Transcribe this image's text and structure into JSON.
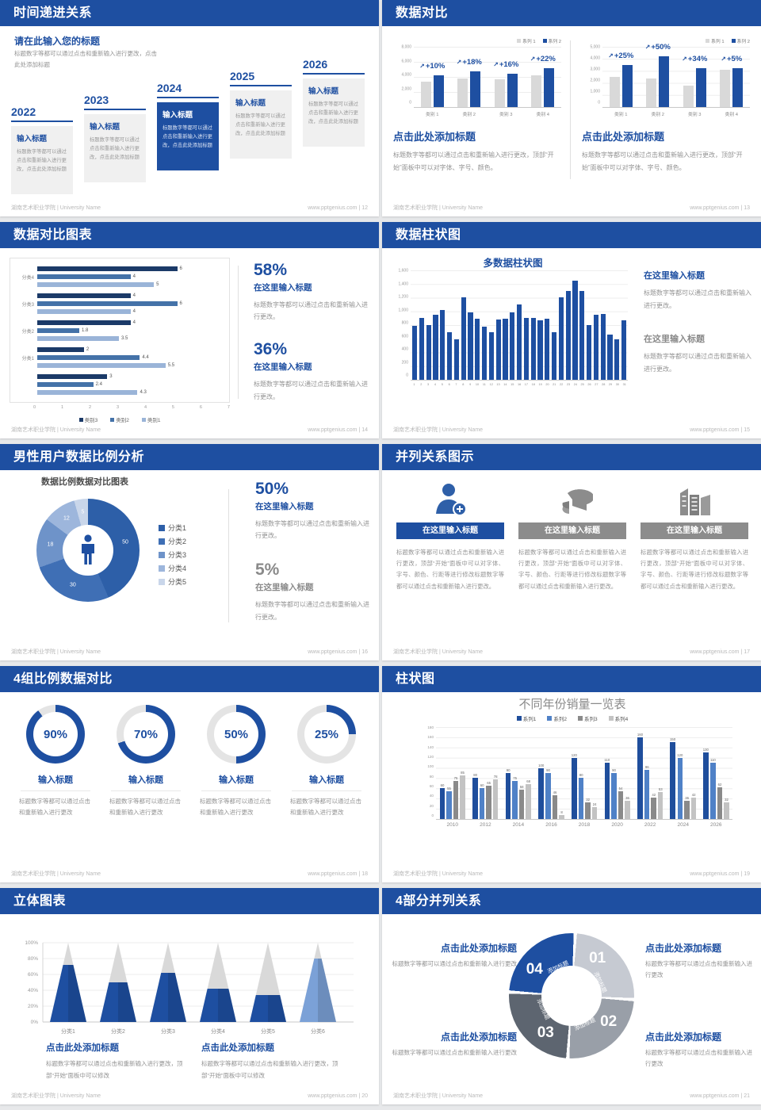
{
  "theme": {
    "accent": "#1e4fa1",
    "accent_mid": "#4f81c7",
    "bar_gray": "#d9d9d9",
    "text_gray": "#939393"
  },
  "footer": {
    "org": "湖南艺术职业学院 | University Name",
    "site": "www.pptgenius.com"
  },
  "slide12": {
    "title": "时间递进关系",
    "page": "12",
    "heading": "请在此输入您的标题",
    "subtext": "标题数字等都可以通过点击和重新输入进行更改，点击此处添加标题",
    "items": [
      {
        "year": "2022",
        "card_title": "输入标题",
        "card_body": "标题数字等都可以通过点击和重新输入进行更改，点击此处添加标题",
        "highlight": false
      },
      {
        "year": "2023",
        "card_title": "输入标题",
        "card_body": "标题数字等都可以通过点击和重新输入进行更改，点击此处添加标题",
        "highlight": false
      },
      {
        "year": "2024",
        "card_title": "输入标题",
        "card_body": "标题数字等都可以通过点击和重新输入进行更改，点击此处添加标题",
        "highlight": true
      },
      {
        "year": "2025",
        "card_title": "输入标题",
        "card_body": "标题数字等都可以通过点击和重新输入进行更改，点击此处添加标题",
        "highlight": false
      },
      {
        "year": "2026",
        "card_title": "输入标题",
        "card_body": "标题数字等都可以通过点击和重新输入进行更改，点击此处添加标题",
        "highlight": false
      }
    ]
  },
  "slide13": {
    "title": "数据对比",
    "page": "13",
    "legend": [
      "系列 1",
      "系列 2"
    ],
    "heading": "点击此处添加标题",
    "body": "标题数字等都可以通过点击和重新输入进行更改，顶部“开始”面板中可以对字体、字号、颜色。",
    "charts": [
      {
        "type": "bar",
        "ymax": 8000,
        "yticks": [
          "8,000",
          "6,000",
          "4,000",
          "2,000",
          "0"
        ],
        "categories": [
          "类别 1",
          "类别 2",
          "类别 3",
          "类别 4"
        ],
        "series": [
          {
            "name": "系列1",
            "values": [
              3400,
              3800,
              3700,
              4200
            ]
          },
          {
            "name": "系列2",
            "values": [
              4200,
              4700,
              4400,
              5200
            ]
          }
        ],
        "percents": [
          "+10%",
          "+18%",
          "+16%",
          "+22%"
        ]
      },
      {
        "type": "bar",
        "ymax": 5000,
        "yticks": [
          "5,000",
          "4,000",
          "3,000",
          "2,000",
          "1,000",
          "0"
        ],
        "categories": [
          "类别 1",
          "类别 2",
          "类别 3",
          "类别 4"
        ],
        "series": [
          {
            "name": "系列1",
            "values": [
              2500,
              2400,
              1800,
              3100
            ]
          },
          {
            "name": "系列2",
            "values": [
              3500,
              4200,
              3200,
              3250
            ]
          }
        ],
        "percents": [
          "+25%",
          "+50%",
          "+34%",
          "+5%"
        ]
      }
    ]
  },
  "slide14": {
    "title": "数据对比图表",
    "page": "14",
    "chart": {
      "type": "bar-horizontal",
      "xmax": 7,
      "xticks": [
        "0",
        "1",
        "2",
        "3",
        "4",
        "5",
        "6",
        "7"
      ],
      "colors": [
        "#1b3a68",
        "#4472a8",
        "#9ab4d8"
      ],
      "legend": [
        "类别3",
        "类别2",
        "类别1"
      ],
      "groups": [
        {
          "label": "分类4",
          "values": [
            6,
            4,
            5
          ]
        },
        {
          "label": "分类3",
          "values": [
            4,
            6,
            4
          ]
        },
        {
          "label": "分类2",
          "values": [
            4,
            1.8,
            3.5
          ]
        },
        {
          "label": "分类1",
          "values": [
            2,
            4.4,
            5.5
          ]
        },
        {
          "label": "",
          "values": [
            3,
            2.4,
            4.3
          ]
        }
      ]
    },
    "stats": [
      {
        "pct": "58%",
        "heading": "在这里输入标题",
        "body": "标题数字等都可以通过点击和重新输入进行更改。",
        "blue": true
      },
      {
        "pct": "36%",
        "heading": "在这里输入标题",
        "body": "标题数字等都可以通过点击和重新输入进行更改。",
        "blue": true
      }
    ]
  },
  "slide15": {
    "title": "数据柱状图",
    "page": "15",
    "chart_title": "多数据柱状图",
    "chart": {
      "type": "bar",
      "ymax": 1600,
      "yticks": [
        "1,600",
        "1,400",
        "1,200",
        "1,000",
        "800",
        "600",
        "400",
        "200",
        "0"
      ],
      "xlabels": [
        "1",
        "2",
        "3",
        "4",
        "5",
        "6",
        "7",
        "8",
        "9",
        "10",
        "11",
        "12",
        "13",
        "14",
        "15",
        "16",
        "17",
        "18",
        "19",
        "20",
        "21",
        "22",
        "23",
        "24",
        "25",
        "26",
        "27",
        "28",
        "29",
        "30",
        "31"
      ],
      "values": [
        790,
        900,
        800,
        950,
        1020,
        700,
        590,
        1210,
        980,
        890,
        780,
        700,
        880,
        890,
        990,
        1100,
        900,
        900,
        870,
        895,
        700,
        1210,
        1300,
        1450,
        1300,
        800,
        955,
        965,
        660,
        590,
        865
      ]
    },
    "sections": [
      {
        "heading": "在这里输入标题",
        "body": "标题数字等都可以通过点击和重新输入进行更改。",
        "blue": true
      },
      {
        "heading": "在这里输入标题",
        "body": "标题数字等都可以通过点击和重新输入进行更改。",
        "blue": false
      }
    ]
  },
  "slide16": {
    "title": "男性用户数据比例分析",
    "page": "16",
    "chart_title": "数据比例数据对比图表",
    "donut": {
      "type": "pie",
      "values": [
        50,
        30,
        18,
        12,
        5
      ],
      "labels": [
        "50",
        "30",
        "18",
        "12",
        "5"
      ],
      "colors": [
        "#2d5fa8",
        "#3f6fb5",
        "#6e93c9",
        "#9db6dc",
        "#c9d6ea"
      ],
      "legend": [
        "分类1",
        "分类2",
        "分类3",
        "分类4",
        "分类5"
      ]
    },
    "stats": [
      {
        "pct": "50%",
        "heading": "在这里输入标题",
        "body": "标题数字等都可以通过点击和重新输入进行更改。",
        "blue": true
      },
      {
        "pct": "5%",
        "heading": "在这里输入标题",
        "body": "标题数字等都可以通过点击和重新输入进行更改。",
        "blue": false
      }
    ]
  },
  "slide17": {
    "title": "并列关系图示",
    "page": "17",
    "columns": [
      {
        "icon": "person-add-icon",
        "header": "在这里输入标题",
        "accent": true,
        "body": "标题数字等都可以通过点击和重新输入进行更改，顶部“开始”面板中可以对字体、字号、颜色、行距等进行修改标题数字等都可以通过点击和重新输入进行更改。"
      },
      {
        "icon": "pie-3d-icon",
        "header": "在这里输入标题",
        "accent": false,
        "body": "标题数字等都可以通过点击和重新输入进行更改，顶部“开始”面板中可以对字体、字号、颜色、行距等进行修改标题数字等都可以通过点击和重新输入进行更改。"
      },
      {
        "icon": "buildings-icon",
        "header": "在这里输入标题",
        "accent": false,
        "body": "标题数字等都可以通过点击和重新输入进行更改，顶部“开始”面板中可以对字体、字号、颜色、行距等进行修改标题数字等都可以通过点击和重新输入进行更改。"
      }
    ]
  },
  "slide18": {
    "title": "4组比例数据对比",
    "page": "18",
    "item_heading": "输入标题",
    "item_body": "标题数字等都可以通过点击和重新输入进行更改",
    "gauges": [
      {
        "value": 90,
        "label": "90%"
      },
      {
        "value": 70,
        "label": "70%"
      },
      {
        "value": 50,
        "label": "50%"
      },
      {
        "value": 25,
        "label": "25%"
      }
    ]
  },
  "slide19": {
    "title": "柱状图",
    "page": "19",
    "chart_title": "不同年份销量一览表",
    "chart": {
      "type": "bar",
      "ymax": 180,
      "yticks": [
        "180",
        "160",
        "140",
        "120",
        "100",
        "80",
        "60",
        "40",
        "20",
        "0"
      ],
      "categories": [
        "2010",
        "2012",
        "2014",
        "2016",
        "2018",
        "2020",
        "2022",
        "2024",
        "2026"
      ],
      "colors": [
        "#1f4e9c",
        "#4f81c7",
        "#8a8a8a",
        "#c3c3c3"
      ],
      "series": [
        {
          "name": "系列1",
          "values": [
            60,
            80,
            90,
            100,
            120,
            110,
            160,
            150,
            130
          ]
        },
        {
          "name": "系列2",
          "values": [
            55,
            60,
            75,
            90,
            80,
            90,
            96,
            120,
            110
          ]
        },
        {
          "name": "系列3",
          "values": [
            75,
            65,
            58,
            46,
            32,
            54,
            42,
            36,
            62
          ]
        },
        {
          "name": "系列4",
          "values": [
            85,
            78,
            68,
            8,
            24,
            36,
            53,
            42,
            32
          ]
        }
      ]
    }
  },
  "slide20": {
    "title": "立体图表",
    "page": "20",
    "yticks": [
      "100%",
      "80%",
      "60%",
      "40%",
      "20%",
      "0%"
    ],
    "cones": [
      {
        "label": "分类1",
        "pct": 72,
        "color": "#1e4fa1"
      },
      {
        "label": "分类2",
        "pct": 50,
        "color": "#1e4fa1"
      },
      {
        "label": "分类3",
        "pct": 62,
        "color": "#1e4fa1"
      },
      {
        "label": "分类4",
        "pct": 42,
        "color": "#1e4fa1"
      },
      {
        "label": "分类5",
        "pct": 34,
        "color": "#1e4fa1"
      },
      {
        "label": "分类6",
        "pct": 80,
        "color": "#7ba1d7"
      }
    ],
    "sections": [
      {
        "heading": "点击此处添加标题",
        "body": "标题数字等都可以通过点击和重新输入进行更改，顶部“开始”面板中可以修改"
      },
      {
        "heading": "点击此处添加标题",
        "body": "标题数字等都可以通过点击和重新输入进行更改，顶部“开始”面板中可以修改"
      }
    ]
  },
  "slide21": {
    "title": "4部分并列关系",
    "page": "21",
    "segments": [
      {
        "num": "01",
        "label": "添加标题",
        "color": "#c6cad2"
      },
      {
        "num": "02",
        "label": "添加标题",
        "color": "#999fa8"
      },
      {
        "num": "03",
        "label": "添加标题",
        "color": "#5d6570"
      },
      {
        "num": "04",
        "label": "添加标题",
        "color": "#1e4fa1"
      }
    ],
    "blocks": [
      {
        "heading": "点击此处添加标题",
        "body": "标题数字等都可以通过点击和重新输入进行更改"
      },
      {
        "heading": "点击此处添加标题",
        "body": "标题数字等都可以通过点击和重新输入进行更改"
      },
      {
        "heading": "点击此处添加标题",
        "body": "标题数字等都可以通过点击和重新输入进行更改"
      },
      {
        "heading": "点击此处添加标题",
        "body": "标题数字等都可以通过点击和重新输入进行更改"
      }
    ]
  }
}
